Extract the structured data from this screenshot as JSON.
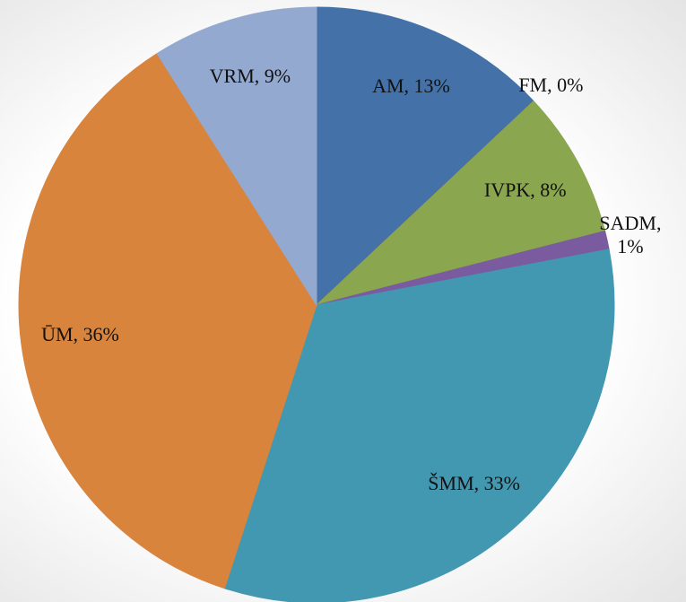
{
  "chart_data": {
    "type": "pie",
    "values": [
      13,
      0,
      8,
      1,
      33,
      36,
      9
    ],
    "value_labels": [
      "AM, 13%",
      "FM, 0%",
      "IVPK, 8%",
      "SADM, 1%",
      "ŠMM, 33%",
      "ŪM, 36%",
      "VRM, 9%"
    ],
    "colors": [
      "#4472a8",
      "#c0504d",
      "#8aa64e",
      "#7b5ba0",
      "#4298b0",
      "#d9843d",
      "#93a9d0"
    ]
  }
}
